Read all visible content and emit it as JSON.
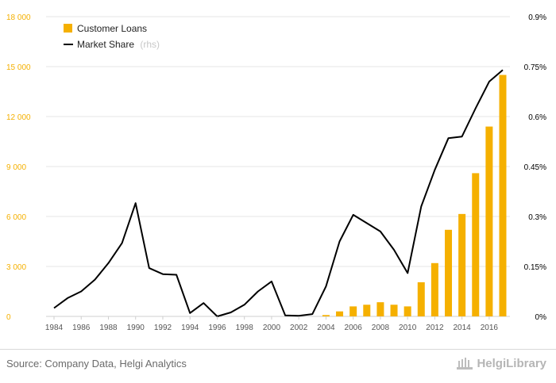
{
  "chart_data": {
    "type": "bar+line",
    "categories": [
      "1984",
      "1985",
      "1986",
      "1987",
      "1988",
      "1989",
      "1990",
      "1991",
      "1992",
      "1993",
      "1994",
      "1995",
      "1996",
      "1997",
      "1998",
      "1999",
      "2000",
      "2001",
      "2002",
      "2003",
      "2004",
      "2005",
      "2006",
      "2007",
      "2008",
      "2009",
      "2010",
      "2011",
      "2012",
      "2013",
      "2014",
      "2015",
      "2016",
      "2017"
    ],
    "x_tick_labels": [
      "1984",
      "1986",
      "1988",
      "1990",
      "1992",
      "1994",
      "1996",
      "1998",
      "2000",
      "2002",
      "2004",
      "2006",
      "2008",
      "2010",
      "2012",
      "2014",
      "2016"
    ],
    "series": [
      {
        "name": "Customer Loans",
        "axis": "left",
        "kind": "bar",
        "color": "#f5b000",
        "values": [
          null,
          null,
          null,
          null,
          null,
          null,
          null,
          null,
          null,
          null,
          null,
          null,
          null,
          null,
          null,
          null,
          null,
          null,
          null,
          null,
          80,
          300,
          600,
          700,
          850,
          700,
          600,
          2050,
          3200,
          5200,
          6150,
          8600,
          11400,
          14500
        ]
      },
      {
        "name": "Market Share",
        "legend_suffix": "(rhs)",
        "axis": "right",
        "kind": "line",
        "color": "#000000",
        "values": [
          0.025,
          0.055,
          0.075,
          0.11,
          0.16,
          0.22,
          0.34,
          0.145,
          0.127,
          0.125,
          0.01,
          0.04,
          0.0,
          0.012,
          0.035,
          0.075,
          0.105,
          0.003,
          0.002,
          0.007,
          0.09,
          0.225,
          0.305,
          0.28,
          0.255,
          0.2,
          0.13,
          0.33,
          0.44,
          0.535,
          0.54,
          0.625,
          0.705,
          0.74
        ]
      }
    ],
    "left_axis": {
      "ylim": [
        0,
        18000
      ],
      "ticks": [
        0,
        3000,
        6000,
        9000,
        12000,
        15000,
        18000
      ],
      "tick_labels": [
        "0",
        "3 000",
        "6 000",
        "9 000",
        "12 000",
        "15 000",
        "18 000"
      ],
      "color": "#f5b000"
    },
    "right_axis": {
      "ylim": [
        0,
        0.9
      ],
      "ticks": [
        0,
        0.15,
        0.3,
        0.45,
        0.6,
        0.75,
        0.9
      ],
      "tick_labels": [
        "0%",
        "0.15%",
        "0.3%",
        "0.45%",
        "0.6%",
        "0.75%",
        "0.9%"
      ],
      "color": "#000000"
    },
    "grid": true,
    "legend_position": "top-left",
    "title": "",
    "xlabel": "",
    "ylabel": ""
  },
  "footer": {
    "source": "Source: Company Data, Helgi Analytics",
    "brand": "HelgiLibrary"
  }
}
